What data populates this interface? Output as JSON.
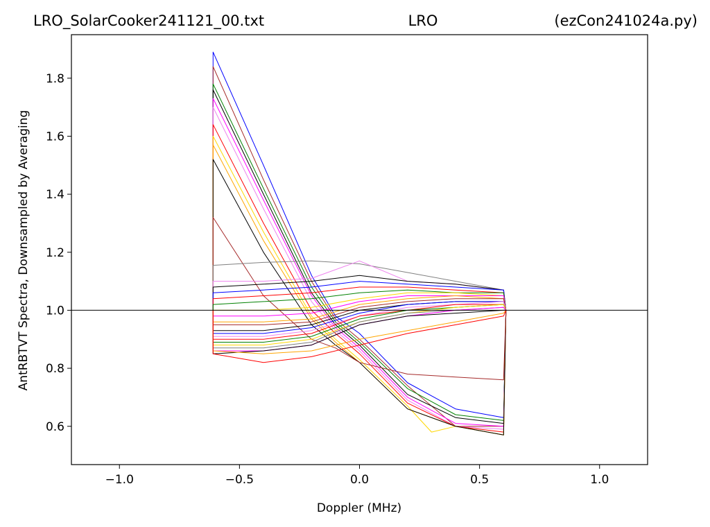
{
  "chart_data": {
    "type": "line",
    "title_left": "LRO_SolarCooker241121_00.txt",
    "title_center": "LRO",
    "title_right": "(ezCon241024a.py)",
    "xlabel": "Doppler (MHz)",
    "ylabel": "AntRBTVT Spectra, Downsampled by Averaging",
    "xlim": [
      -1.2,
      1.2
    ],
    "ylim": [
      0.468,
      1.95
    ],
    "xticks": [
      -1.0,
      -0.5,
      0.0,
      0.5,
      1.0
    ],
    "xtick_labels": [
      "−1.0",
      "−0.5",
      "0.0",
      "0.5",
      "1.0"
    ],
    "yticks": [
      0.6,
      0.8,
      1.0,
      1.2,
      1.4,
      1.6,
      1.8
    ],
    "ytick_labels": [
      "0.6",
      "0.8",
      "1.0",
      "1.2",
      "1.4",
      "1.6",
      "1.8"
    ],
    "reference_line": 1.0,
    "grid": false,
    "legend": "none",
    "x_start": -0.61,
    "x_end": 0.61,
    "series": [
      {
        "color": "#0000ff",
        "x": [
          -0.61,
          -0.4,
          -0.2,
          -0.1,
          0.0,
          0.2,
          0.4,
          0.6
        ],
        "y": [
          1.89,
          1.5,
          1.12,
          0.98,
          0.92,
          0.75,
          0.66,
          0.63
        ]
      },
      {
        "color": "#a52a2a",
        "x": [
          -0.61,
          -0.4,
          -0.2,
          -0.1,
          0.0,
          0.2,
          0.4,
          0.6
        ],
        "y": [
          1.84,
          1.45,
          1.1,
          0.97,
          0.9,
          0.74,
          0.6,
          0.6
        ]
      },
      {
        "color": "#008000",
        "x": [
          -0.61,
          -0.4,
          -0.2,
          -0.1,
          0.0,
          0.2,
          0.4,
          0.6
        ],
        "y": [
          1.78,
          1.42,
          1.08,
          0.96,
          0.89,
          0.73,
          0.64,
          0.62
        ]
      },
      {
        "color": "#000000",
        "x": [
          -0.61,
          -0.4,
          -0.2,
          -0.1,
          0.0,
          0.2,
          0.4,
          0.6
        ],
        "y": [
          1.76,
          1.4,
          1.06,
          0.95,
          0.88,
          0.71,
          0.63,
          0.61
        ]
      },
      {
        "color": "#ff00ff",
        "x": [
          -0.61,
          -0.4,
          -0.2,
          -0.1,
          0.0,
          0.2,
          0.4,
          0.6
        ],
        "y": [
          1.73,
          1.38,
          1.05,
          0.94,
          0.87,
          0.7,
          0.61,
          0.6
        ]
      },
      {
        "color": "#ee82ee",
        "x": [
          -0.61,
          -0.4,
          -0.2,
          -0.1,
          0.0,
          0.2,
          0.4,
          0.6
        ],
        "y": [
          1.7,
          1.35,
          1.03,
          0.93,
          0.86,
          0.69,
          0.6,
          0.59
        ]
      },
      {
        "color": "#ff0000",
        "x": [
          -0.61,
          -0.4,
          -0.2,
          -0.1,
          0.0,
          0.2,
          0.4,
          0.6
        ],
        "y": [
          1.64,
          1.3,
          1.0,
          0.92,
          0.85,
          0.68,
          0.6,
          0.58
        ]
      },
      {
        "color": "#ffd700",
        "x": [
          -0.61,
          -0.4,
          -0.2,
          -0.1,
          0.0,
          0.2,
          0.3,
          0.4,
          0.6
        ],
        "y": [
          1.6,
          1.27,
          0.98,
          0.9,
          0.83,
          0.67,
          0.58,
          0.6,
          0.57
        ]
      },
      {
        "color": "#ffa500",
        "x": [
          -0.61,
          -0.4,
          -0.2,
          -0.1,
          0.0,
          0.2,
          0.4,
          0.6
        ],
        "y": [
          1.57,
          1.24,
          0.97,
          0.89,
          0.82,
          0.66,
          0.6,
          0.57
        ]
      },
      {
        "color": "#000000",
        "x": [
          -0.61,
          -0.4,
          -0.2,
          -0.1,
          0.0,
          0.2,
          0.4,
          0.6
        ],
        "y": [
          1.52,
          1.2,
          0.95,
          0.88,
          0.82,
          0.66,
          0.6,
          0.57
        ]
      },
      {
        "color": "#a52a2a",
        "x": [
          -0.61,
          -0.4,
          -0.2,
          -0.1,
          0.0,
          0.2,
          0.4,
          0.6
        ],
        "y": [
          1.32,
          1.05,
          0.9,
          0.87,
          0.82,
          0.78,
          0.77,
          0.76
        ]
      },
      {
        "color": "#808080",
        "x": [
          -0.61,
          -0.4,
          -0.2,
          0.0,
          0.2,
          0.4,
          0.6
        ],
        "y": [
          1.155,
          1.165,
          1.17,
          1.16,
          1.13,
          1.1,
          1.07
        ]
      },
      {
        "color": "#ee82ee",
        "x": [
          -0.61,
          -0.4,
          -0.2,
          0.0,
          0.2,
          0.4,
          0.6
        ],
        "y": [
          1.1,
          1.1,
          1.11,
          1.17,
          1.1,
          1.09,
          1.07
        ]
      },
      {
        "color": "#000000",
        "x": [
          -0.61,
          -0.4,
          -0.2,
          0.0,
          0.2,
          0.4,
          0.6
        ],
        "y": [
          1.08,
          1.09,
          1.1,
          1.12,
          1.1,
          1.09,
          1.07
        ]
      },
      {
        "color": "#0000ff",
        "x": [
          -0.61,
          -0.4,
          -0.2,
          0.0,
          0.2,
          0.4,
          0.6
        ],
        "y": [
          1.06,
          1.07,
          1.08,
          1.1,
          1.09,
          1.08,
          1.07
        ]
      },
      {
        "color": "#ff0000",
        "x": [
          -0.61,
          -0.4,
          -0.2,
          0.0,
          0.2,
          0.4,
          0.6
        ],
        "y": [
          1.04,
          1.05,
          1.06,
          1.08,
          1.08,
          1.07,
          1.06
        ]
      },
      {
        "color": "#008000",
        "x": [
          -0.61,
          -0.4,
          -0.2,
          0.0,
          0.2,
          0.4,
          0.6
        ],
        "y": [
          1.02,
          1.03,
          1.04,
          1.06,
          1.07,
          1.06,
          1.06
        ]
      },
      {
        "color": "#ffd700",
        "x": [
          -0.61,
          -0.4,
          -0.2,
          0.0,
          0.2,
          0.4,
          0.6
        ],
        "y": [
          1.0,
          1.0,
          1.01,
          1.04,
          1.06,
          1.06,
          1.05
        ]
      },
      {
        "color": "#ff00ff",
        "x": [
          -0.61,
          -0.4,
          -0.2,
          0.0,
          0.2,
          0.4,
          0.6
        ],
        "y": [
          0.98,
          0.98,
          0.99,
          1.03,
          1.05,
          1.05,
          1.05
        ]
      },
      {
        "color": "#ffa500",
        "x": [
          -0.61,
          -0.4,
          -0.2,
          0.0,
          0.2,
          0.4,
          0.6
        ],
        "y": [
          0.96,
          0.96,
          0.97,
          1.02,
          1.04,
          1.05,
          1.04
        ]
      },
      {
        "color": "#a52a2a",
        "x": [
          -0.61,
          -0.4,
          -0.2,
          0.0,
          0.2,
          0.4,
          0.6
        ],
        "y": [
          0.95,
          0.95,
          0.96,
          1.01,
          1.03,
          1.04,
          1.04
        ]
      },
      {
        "color": "#000000",
        "x": [
          -0.61,
          -0.4,
          -0.2,
          0.0,
          0.2,
          0.4,
          0.6
        ],
        "y": [
          0.93,
          0.93,
          0.95,
          1.0,
          1.02,
          1.03,
          1.03
        ]
      },
      {
        "color": "#0000ff",
        "x": [
          -0.61,
          -0.4,
          -0.2,
          0.0,
          0.2,
          0.4,
          0.6
        ],
        "y": [
          0.92,
          0.92,
          0.94,
          0.99,
          1.02,
          1.03,
          1.03
        ]
      },
      {
        "color": "#ee82ee",
        "x": [
          -0.61,
          -0.4,
          -0.2,
          0.0,
          0.2,
          0.4,
          0.6
        ],
        "y": [
          0.91,
          0.91,
          0.93,
          0.98,
          1.01,
          1.02,
          1.03
        ]
      },
      {
        "color": "#ff0000",
        "x": [
          -0.61,
          -0.4,
          -0.2,
          0.0,
          0.2,
          0.4,
          0.6
        ],
        "y": [
          0.9,
          0.9,
          0.92,
          0.98,
          1.0,
          1.02,
          1.02
        ]
      },
      {
        "color": "#008000",
        "x": [
          -0.61,
          -0.4,
          -0.2,
          0.0,
          0.2,
          0.4,
          0.6
        ],
        "y": [
          0.89,
          0.89,
          0.91,
          0.97,
          1.0,
          1.01,
          1.02
        ]
      },
      {
        "color": "#ffd700",
        "x": [
          -0.61,
          -0.4,
          -0.2,
          0.0,
          0.2,
          0.4,
          0.6
        ],
        "y": [
          0.88,
          0.88,
          0.9,
          0.96,
          0.99,
          1.01,
          1.02
        ]
      },
      {
        "color": "#808080",
        "x": [
          -0.61,
          -0.4,
          -0.2,
          0.0,
          0.2,
          0.4,
          0.6
        ],
        "y": [
          0.87,
          0.87,
          0.89,
          0.96,
          0.99,
          1.0,
          1.01
        ]
      },
      {
        "color": "#ff00ff",
        "x": [
          -0.61,
          -0.4,
          -0.2,
          0.0,
          0.2,
          0.4,
          0.6
        ],
        "y": [
          0.86,
          0.86,
          0.88,
          0.95,
          0.98,
          1.0,
          1.01
        ]
      },
      {
        "color": "#000000",
        "x": [
          -0.61,
          -0.4,
          -0.2,
          0.0,
          0.2,
          0.4,
          0.6
        ],
        "y": [
          0.85,
          0.86,
          0.88,
          0.95,
          0.98,
          0.99,
          1.0
        ]
      },
      {
        "color": "#ffa500",
        "x": [
          -0.61,
          -0.4,
          -0.2,
          0.0,
          0.2,
          0.4,
          0.6
        ],
        "y": [
          0.86,
          0.85,
          0.86,
          0.9,
          0.93,
          0.96,
          0.99
        ]
      },
      {
        "color": "#ff0000",
        "x": [
          -0.61,
          -0.4,
          -0.2,
          0.0,
          0.2,
          0.4,
          0.6
        ],
        "y": [
          0.85,
          0.82,
          0.84,
          0.88,
          0.92,
          0.95,
          0.98
        ]
      }
    ]
  }
}
